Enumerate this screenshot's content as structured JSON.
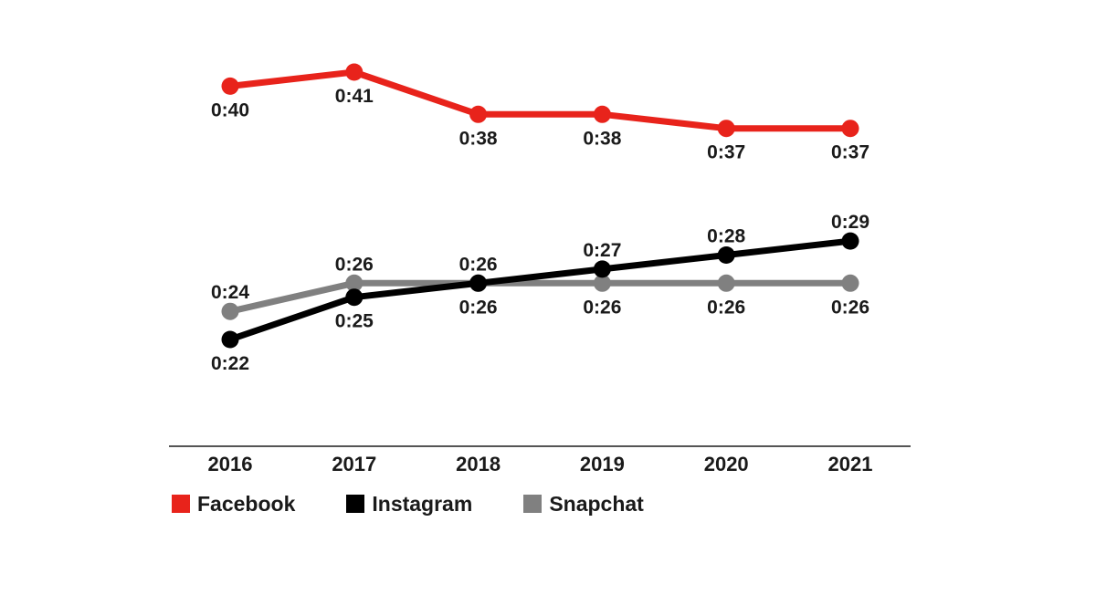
{
  "chart_data": {
    "type": "line",
    "categories": [
      "2016",
      "2017",
      "2018",
      "2019",
      "2020",
      "2021"
    ],
    "series": [
      {
        "name": "Facebook",
        "color": "#e8231b",
        "values": [
          40,
          41,
          38,
          38,
          37,
          37
        ],
        "labels": [
          "0:40",
          "0:41",
          "0:38",
          "0:38",
          "0:37",
          "0:37"
        ],
        "label_position": [
          "below",
          "below",
          "below",
          "below",
          "below",
          "below"
        ]
      },
      {
        "name": "Instagram",
        "color": "#000000",
        "values": [
          22,
          25,
          26,
          27,
          28,
          29
        ],
        "labels": [
          "0:22",
          "0:25",
          "0:26",
          "0:27",
          "0:28",
          "0:29"
        ],
        "label_position": [
          "below",
          "below",
          "above",
          "above",
          "above",
          "above"
        ]
      },
      {
        "name": "Snapchat",
        "color": "#808080",
        "values": [
          24,
          26,
          26,
          26,
          26,
          26
        ],
        "labels": [
          "0:24",
          "0:26",
          "0:26",
          "0:26",
          "0:26",
          "0:26"
        ],
        "label_position": [
          "above",
          "above",
          "below",
          "below",
          "below",
          "below"
        ]
      }
    ],
    "unit": "minutes",
    "ylim": [
      14,
      44
    ],
    "grid": false,
    "legend_placement": "bottom-left",
    "title": "",
    "xlabel": "",
    "ylabel": ""
  },
  "legend": {
    "facebook": "Facebook",
    "instagram": "Instagram",
    "snapchat": "Snapchat"
  }
}
